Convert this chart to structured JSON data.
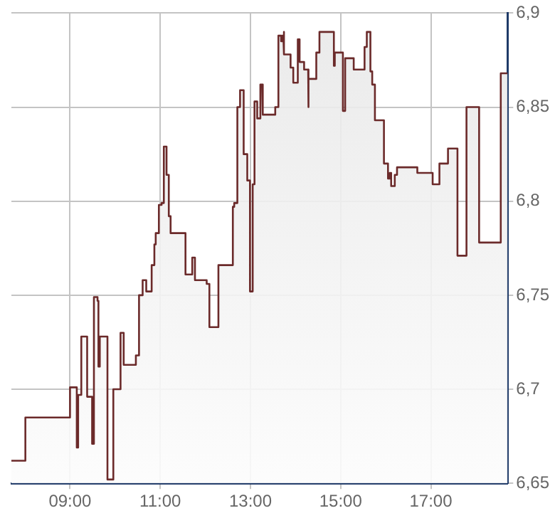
{
  "chart_data": {
    "type": "area",
    "x": [
      7.7,
      8.01,
      8.01,
      9.0,
      9.0,
      9.15,
      9.15,
      9.18,
      9.18,
      9.25,
      9.25,
      9.38,
      9.38,
      9.49,
      9.49,
      9.53,
      9.53,
      9.61,
      9.61,
      9.63,
      9.63,
      9.66,
      9.66,
      9.83,
      9.83,
      9.96,
      9.96,
      10.12,
      10.12,
      10.19,
      10.19,
      10.46,
      10.46,
      10.53,
      10.53,
      10.61,
      10.61,
      10.69,
      10.69,
      10.81,
      10.81,
      10.87,
      10.87,
      10.9,
      10.9,
      10.97,
      10.97,
      11.03,
      11.03,
      11.08,
      11.08,
      11.14,
      11.14,
      11.19,
      11.19,
      11.23,
      11.23,
      11.56,
      11.56,
      11.71,
      11.71,
      11.77,
      11.77,
      12.03,
      12.03,
      12.09,
      12.09,
      12.29,
      12.29,
      12.61,
      12.61,
      12.64,
      12.64,
      12.71,
      12.71,
      12.77,
      12.77,
      12.85,
      12.85,
      12.93,
      12.93,
      12.99,
      12.99,
      13.05,
      13.05,
      13.09,
      13.09,
      13.15,
      13.15,
      13.22,
      13.22,
      13.26,
      13.26,
      13.28,
      13.28,
      13.55,
      13.55,
      13.6,
      13.6,
      13.63,
      13.63,
      13.68,
      13.68,
      13.71,
      13.71,
      13.73,
      13.73,
      13.75,
      13.75,
      13.89,
      13.89,
      13.95,
      13.95,
      14.05,
      14.05,
      14.09,
      14.09,
      14.19,
      14.19,
      14.28,
      14.28,
      14.29,
      14.29,
      14.46,
      14.46,
      14.53,
      14.53,
      14.85,
      14.85,
      14.87,
      14.87,
      15.05,
      15.05,
      15.1,
      15.1,
      15.29,
      15.29,
      15.53,
      15.53,
      15.58,
      15.58,
      15.66,
      15.66,
      15.7,
      15.7,
      15.76,
      15.76,
      15.96,
      15.96,
      16.05,
      16.05,
      16.09,
      16.09,
      16.12,
      16.12,
      16.2,
      16.2,
      16.25,
      16.25,
      16.7,
      16.7,
      17.04,
      17.04,
      17.19,
      17.19,
      17.38,
      17.38,
      17.59,
      17.59,
      17.79,
      17.79,
      18.07,
      18.07,
      18.55,
      18.55,
      18.7
    ],
    "series": [
      {
        "color": "#6b2a2a",
        "values": [
          6.662,
          6.662,
          6.685,
          6.685,
          6.701,
          6.701,
          6.669,
          6.669,
          6.697,
          6.697,
          6.728,
          6.728,
          6.696,
          6.696,
          6.671,
          6.671,
          6.749,
          6.749,
          6.747,
          6.747,
          6.712,
          6.712,
          6.728,
          6.728,
          6.652,
          6.652,
          6.7,
          6.7,
          6.73,
          6.73,
          6.713,
          6.713,
          6.718,
          6.718,
          6.75,
          6.75,
          6.758,
          6.758,
          6.752,
          6.752,
          6.766,
          6.766,
          6.777,
          6.777,
          6.783,
          6.783,
          6.798,
          6.798,
          6.799,
          6.799,
          6.829,
          6.829,
          6.814,
          6.814,
          6.792,
          6.792,
          6.783,
          6.783,
          6.761,
          6.761,
          6.77,
          6.77,
          6.758,
          6.758,
          6.756,
          6.756,
          6.733,
          6.733,
          6.766,
          6.766,
          6.797,
          6.797,
          6.799,
          6.799,
          6.85,
          6.85,
          6.859,
          6.859,
          6.825,
          6.825,
          6.811,
          6.811,
          6.752,
          6.752,
          6.809,
          6.809,
          6.853,
          6.853,
          6.844,
          6.844,
          6.862,
          6.862,
          6.862,
          6.862,
          6.846,
          6.846,
          6.85,
          6.85,
          6.85,
          6.85,
          6.888,
          6.888,
          6.885,
          6.885,
          6.888,
          6.888,
          6.89,
          6.89,
          6.878,
          6.878,
          6.871,
          6.871,
          6.863,
          6.863,
          6.886,
          6.886,
          6.874,
          6.874,
          6.87,
          6.87,
          6.85,
          6.85,
          6.865,
          6.865,
          6.879,
          6.879,
          6.89,
          6.89,
          6.872,
          6.872,
          6.879,
          6.879,
          6.848,
          6.848,
          6.876,
          6.876,
          6.87,
          6.87,
          6.882,
          6.882,
          6.89,
          6.89,
          6.869,
          6.869,
          6.862,
          6.862,
          6.843,
          6.843,
          6.82,
          6.82,
          6.812,
          6.812,
          6.815,
          6.815,
          6.808,
          6.808,
          6.814,
          6.814,
          6.818,
          6.818,
          6.815,
          6.815,
          6.809,
          6.809,
          6.82,
          6.82,
          6.828,
          6.828,
          6.771,
          6.771,
          6.85,
          6.85,
          6.778,
          6.778,
          6.868,
          6.868
        ]
      }
    ],
    "xlim": [
      7.7,
      18.7
    ],
    "xticks": [
      {
        "value": 9,
        "label": "09:00"
      },
      {
        "value": 11,
        "label": "11:00"
      },
      {
        "value": 13,
        "label": "13:00"
      },
      {
        "value": 15,
        "label": "15:00"
      },
      {
        "value": 17,
        "label": "17:00"
      }
    ],
    "ylim": [
      6.65,
      6.9
    ],
    "yticks": [
      {
        "value": 6.65,
        "label": "6,65"
      },
      {
        "value": 6.7,
        "label": "6,7"
      },
      {
        "value": 6.75,
        "label": "6,75"
      },
      {
        "value": 6.8,
        "label": "6,8"
      },
      {
        "value": 6.85,
        "label": "6,85"
      },
      {
        "value": 6.9,
        "label": "6,9"
      }
    ],
    "grid": true,
    "legend": false
  }
}
